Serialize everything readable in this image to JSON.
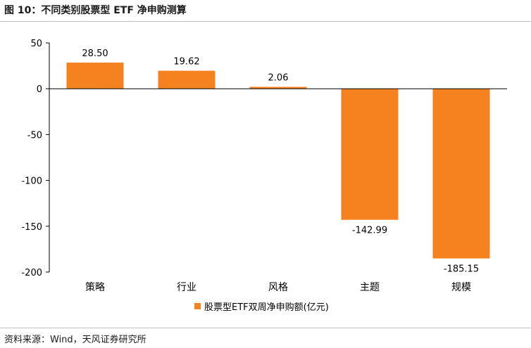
{
  "figure": {
    "title": "图 10：不同类别股票型 ETF 净申购测算",
    "source": "资料来源：Wind，天风证券研究所"
  },
  "colors": {
    "bar": "#F5821F",
    "axis": "#000000",
    "rule": "#BFBFBF"
  },
  "chart_data": {
    "type": "bar",
    "categories": [
      "策略",
      "行业",
      "风格",
      "主题",
      "规模"
    ],
    "series": [
      {
        "name": "股票型ETF双周净申购额(亿元)",
        "values": [
          28.5,
          19.62,
          2.06,
          -142.99,
          -185.15
        ]
      }
    ],
    "data_labels": [
      "28.50",
      "19.62",
      "2.06",
      "-142.99",
      "-185.15"
    ],
    "ylim": [
      -200,
      50
    ],
    "yticks": [
      50,
      0,
      -50,
      -100,
      -150,
      -200
    ],
    "xlabel": "",
    "ylabel": "",
    "grid": false,
    "legend_position": "bottom"
  }
}
